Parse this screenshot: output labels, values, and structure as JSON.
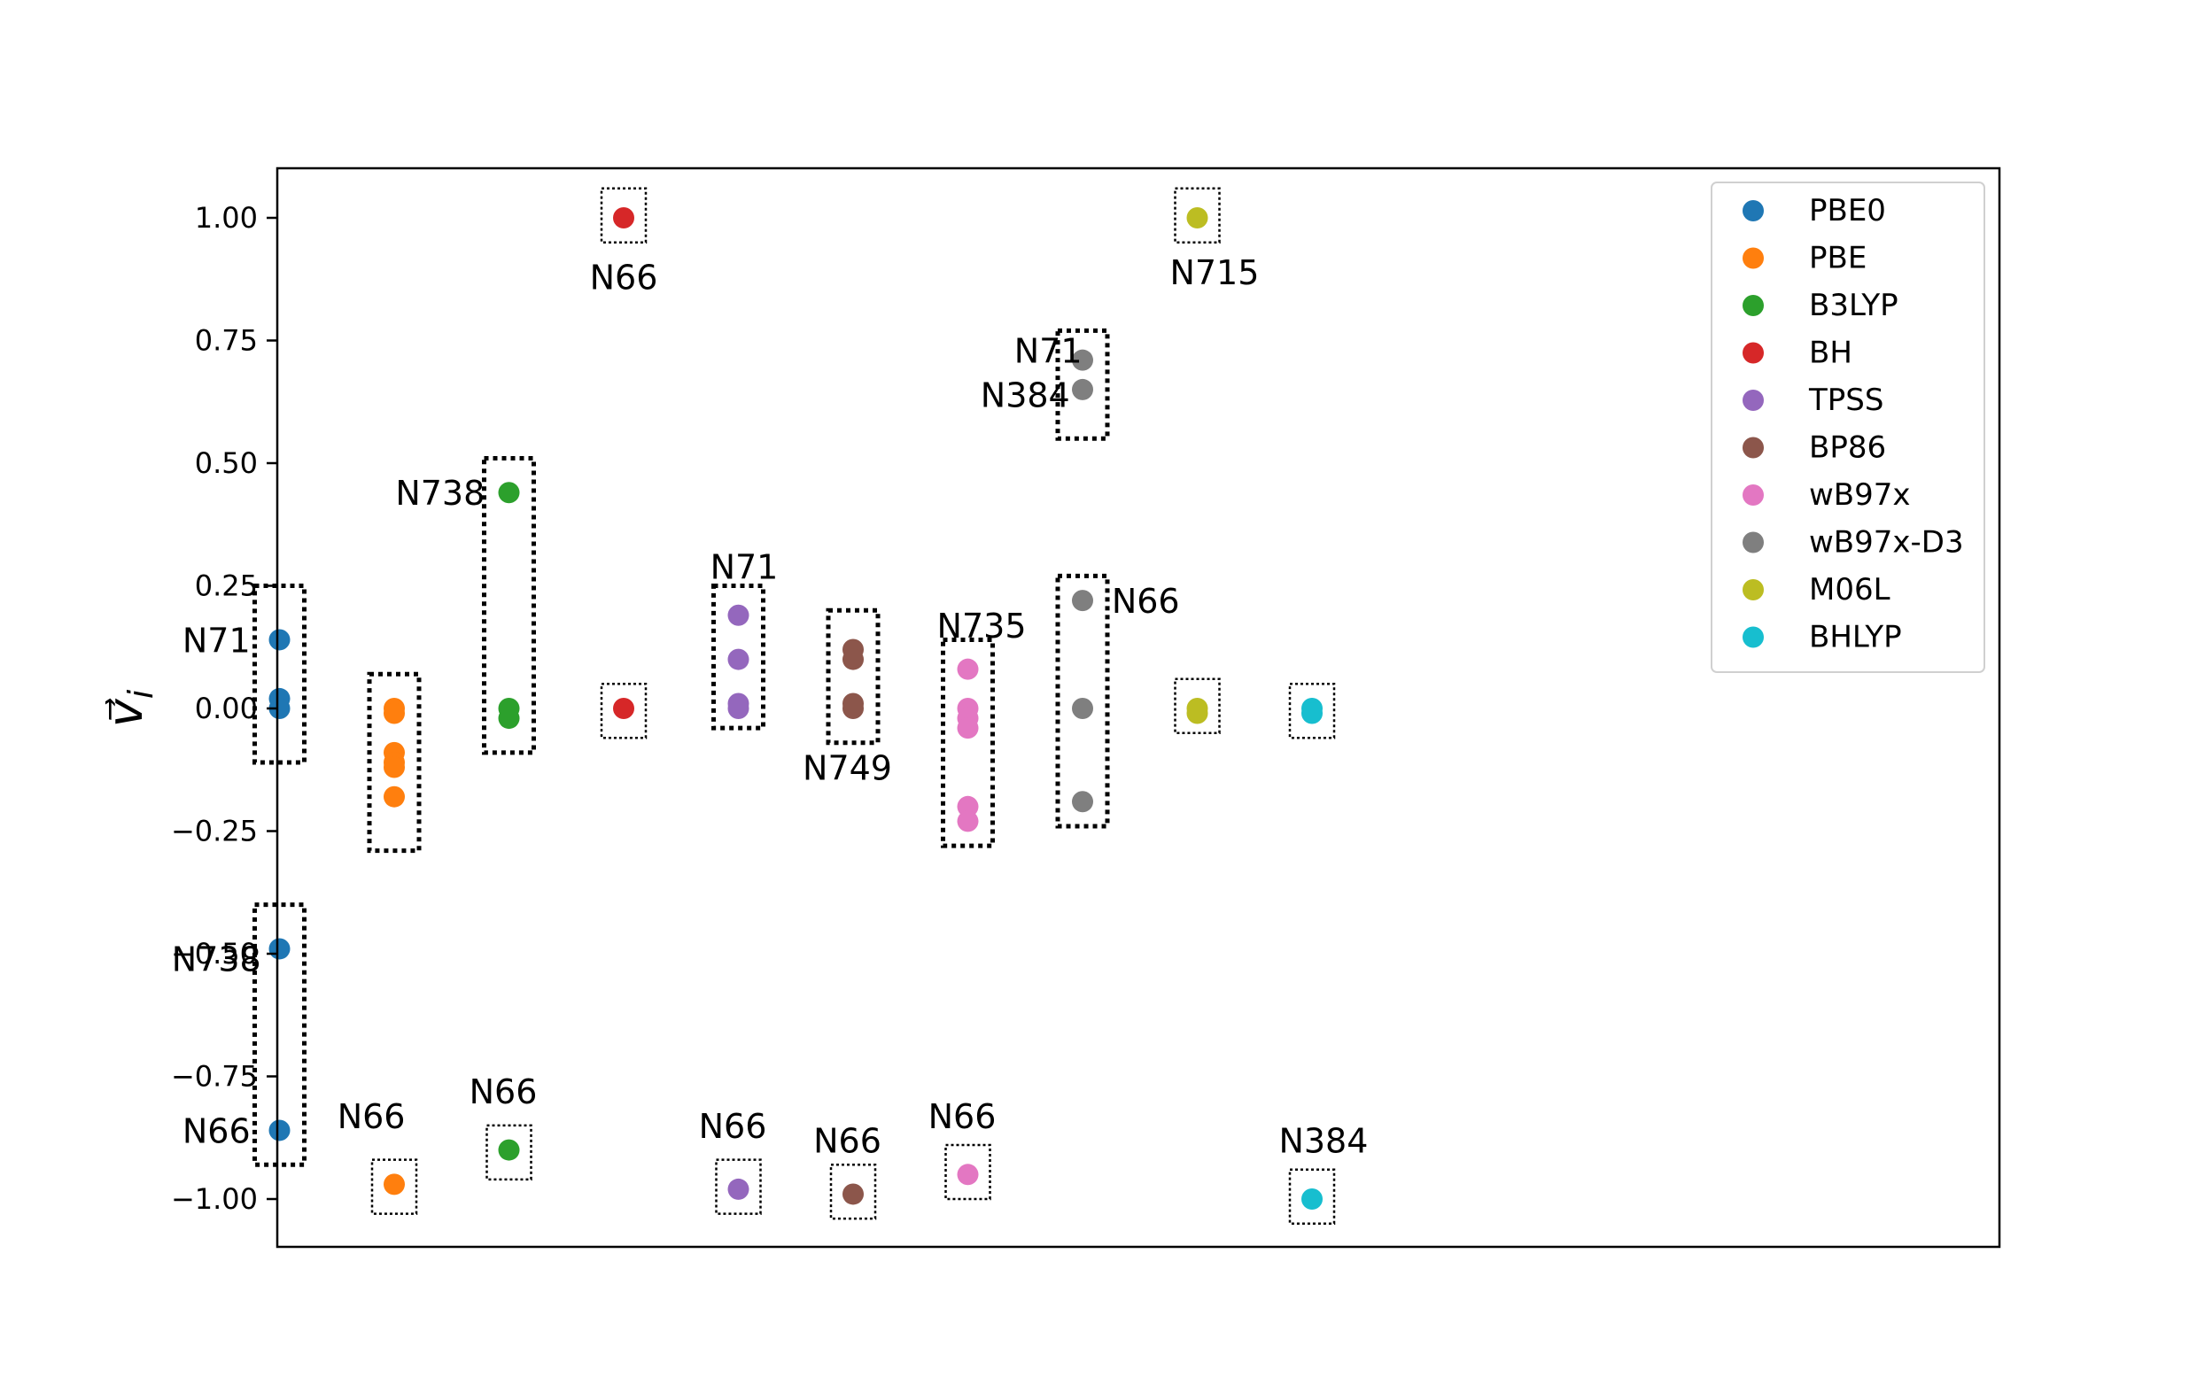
{
  "chart_data": {
    "type": "scatter",
    "title": "",
    "xlabel": "",
    "ylabel": "v⃗",
    "ylabel_sub": "i",
    "ylim": [
      -1.1,
      1.1
    ],
    "yticks": [
      {
        "value": 1.0,
        "label": "1.00"
      },
      {
        "value": 0.75,
        "label": "0.75"
      },
      {
        "value": 0.5,
        "label": "0.50"
      },
      {
        "value": 0.25,
        "label": "0.25"
      },
      {
        "value": 0.0,
        "label": "0.00"
      },
      {
        "value": -0.25,
        "label": "−0.25"
      },
      {
        "value": -0.5,
        "label": "−0.50"
      },
      {
        "value": -0.75,
        "label": "−0.75"
      },
      {
        "value": -1.0,
        "label": "−1.00"
      }
    ],
    "xlim": [
      0,
      15
    ],
    "grid": false,
    "legend_position": "top-right",
    "series": [
      {
        "name": "PBE0",
        "color": "#1f77b4",
        "x": 1,
        "values": [
          0.14,
          0.02,
          0.0,
          -0.49,
          -0.86
        ]
      },
      {
        "name": "PBE",
        "color": "#ff7f0e",
        "x": 2,
        "values": [
          0.0,
          -0.01,
          -0.09,
          -0.11,
          -0.12,
          -0.18,
          -0.97
        ]
      },
      {
        "name": "B3LYP",
        "color": "#2ca02c",
        "x": 3,
        "values": [
          0.44,
          0.0,
          -0.02,
          -0.9
        ]
      },
      {
        "name": "BH",
        "color": "#d62728",
        "x": 4,
        "values": [
          1.0,
          0.0
        ]
      },
      {
        "name": "TPSS",
        "color": "#9467bd",
        "x": 5,
        "values": [
          0.19,
          0.1,
          0.01,
          0.0,
          -0.98
        ]
      },
      {
        "name": "BP86",
        "color": "#8c564b",
        "x": 6,
        "values": [
          0.12,
          0.1,
          0.01,
          0.0,
          -0.99
        ]
      },
      {
        "name": "wB97x",
        "color": "#e377c2",
        "x": 7,
        "values": [
          0.08,
          0.0,
          -0.02,
          -0.04,
          -0.2,
          -0.23,
          -0.95
        ]
      },
      {
        "name": "wB97x-D3",
        "color": "#7f7f7f",
        "x": 8,
        "values": [
          0.71,
          0.65,
          0.22,
          0.0,
          -0.19
        ]
      },
      {
        "name": "M06L",
        "color": "#bcbd22",
        "x": 9,
        "values": [
          1.0,
          0.0,
          -0.01
        ]
      },
      {
        "name": "BHLYP",
        "color": "#17becf",
        "x": 10,
        "values": [
          0.0,
          -0.01,
          -1.0
        ]
      }
    ],
    "boxes": [
      {
        "x": 1,
        "y0": -0.11,
        "y1": 0.25,
        "style": "thick"
      },
      {
        "x": 1,
        "y0": -0.93,
        "y1": -0.4,
        "style": "thick"
      },
      {
        "x": 2,
        "y0": -0.29,
        "y1": 0.07,
        "style": "thick"
      },
      {
        "x": 2,
        "y0": -1.03,
        "y1": -0.92,
        "style": "thin"
      },
      {
        "x": 3,
        "y0": -0.09,
        "y1": 0.51,
        "style": "thick"
      },
      {
        "x": 3,
        "y0": -0.96,
        "y1": -0.85,
        "style": "thin"
      },
      {
        "x": 4,
        "y0": 0.95,
        "y1": 1.06,
        "style": "thin"
      },
      {
        "x": 4,
        "y0": -0.06,
        "y1": 0.05,
        "style": "thin"
      },
      {
        "x": 5,
        "y0": -0.04,
        "y1": 0.25,
        "style": "thick"
      },
      {
        "x": 5,
        "y0": -1.03,
        "y1": -0.92,
        "style": "thin"
      },
      {
        "x": 6,
        "y0": -0.07,
        "y1": 0.2,
        "style": "thick"
      },
      {
        "x": 6,
        "y0": -1.04,
        "y1": -0.93,
        "style": "thin"
      },
      {
        "x": 7,
        "y0": -0.28,
        "y1": 0.14,
        "style": "thick"
      },
      {
        "x": 7,
        "y0": -1.0,
        "y1": -0.89,
        "style": "thin"
      },
      {
        "x": 8,
        "y0": 0.55,
        "y1": 0.77,
        "style": "thick"
      },
      {
        "x": 8,
        "y0": -0.24,
        "y1": 0.27,
        "style": "thick"
      },
      {
        "x": 9,
        "y0": 0.95,
        "y1": 1.06,
        "style": "thin"
      },
      {
        "x": 9,
        "y0": -0.05,
        "y1": 0.06,
        "style": "thin"
      },
      {
        "x": 10,
        "y0": -0.06,
        "y1": 0.05,
        "style": "thin"
      },
      {
        "x": 10,
        "y0": -1.05,
        "y1": -0.94,
        "style": "thin"
      }
    ],
    "annotations": [
      {
        "text": "N71",
        "x": 0.45,
        "y": 0.14,
        "anchor": "middle"
      },
      {
        "text": "N738",
        "x": 0.45,
        "y": -0.51,
        "anchor": "middle"
      },
      {
        "text": "N66",
        "x": 0.45,
        "y": -0.86,
        "anchor": "middle"
      },
      {
        "text": "N66",
        "x": 1.8,
        "y": -0.83,
        "anchor": "middle"
      },
      {
        "text": "N738",
        "x": 2.4,
        "y": 0.44,
        "anchor": "middle"
      },
      {
        "text": "N66",
        "x": 2.95,
        "y": -0.78,
        "anchor": "middle"
      },
      {
        "text": "N66",
        "x": 4.0,
        "y": 0.88,
        "anchor": "middle"
      },
      {
        "text": "N71",
        "x": 5.05,
        "y": 0.29,
        "anchor": "middle"
      },
      {
        "text": "N66",
        "x": 4.95,
        "y": -0.85,
        "anchor": "middle"
      },
      {
        "text": "N749",
        "x": 5.95,
        "y": -0.12,
        "anchor": "middle"
      },
      {
        "text": "N66",
        "x": 5.95,
        "y": -0.88,
        "anchor": "middle"
      },
      {
        "text": "N735",
        "x": 7.12,
        "y": 0.17,
        "anchor": "middle"
      },
      {
        "text": "N66",
        "x": 6.95,
        "y": -0.83,
        "anchor": "middle"
      },
      {
        "text": "N71",
        "x": 7.7,
        "y": 0.73,
        "anchor": "middle"
      },
      {
        "text": "N384",
        "x": 7.5,
        "y": 0.64,
        "anchor": "middle"
      },
      {
        "text": "N66",
        "x": 8.55,
        "y": 0.22,
        "anchor": "middle"
      },
      {
        "text": "N715",
        "x": 9.15,
        "y": 0.89,
        "anchor": "middle"
      },
      {
        "text": "N384",
        "x": 10.1,
        "y": -0.88,
        "anchor": "middle"
      }
    ]
  }
}
